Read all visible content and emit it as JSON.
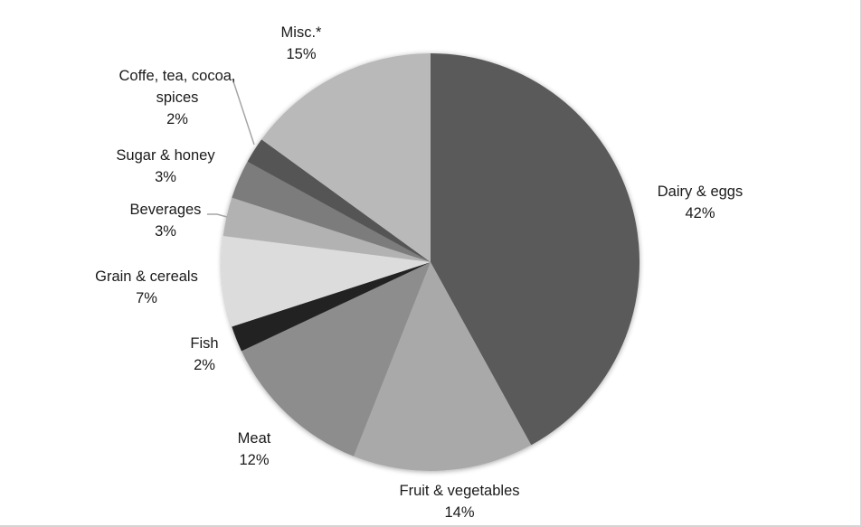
{
  "chart_data": {
    "type": "pie",
    "title": "",
    "start_angle": "12 o'clock",
    "direction": "clockwise",
    "slices": [
      {
        "label": "Dairy & eggs",
        "value": 42,
        "display": "42%",
        "color": "#5a5a5a"
      },
      {
        "label": "Fruit & vegetables",
        "value": 14,
        "display": "14%",
        "color": "#a9a9a9"
      },
      {
        "label": "Meat",
        "value": 12,
        "display": "12%",
        "color": "#8d8d8d"
      },
      {
        "label": "Fish",
        "value": 2,
        "display": "2%",
        "color": "#232323"
      },
      {
        "label": "Grain & cereals",
        "value": 7,
        "display": "7%",
        "color": "#dcdcdc"
      },
      {
        "label": "Beverages",
        "value": 3,
        "display": "3%",
        "color": "#b2b2b2"
      },
      {
        "label": "Sugar & honey",
        "value": 3,
        "display": "3%",
        "color": "#7b7b7b"
      },
      {
        "label": "Coffe, tea, cocoa, spices",
        "value": 2,
        "display": "2%",
        "color": "#555555"
      },
      {
        "label": "Misc.*",
        "value": 15,
        "display": "15%",
        "color": "#b9b9b9"
      }
    ],
    "legend": "none (data labels outside)",
    "units": "%"
  },
  "labels": {
    "dairy": {
      "name": "Dairy & eggs",
      "pct": "42%"
    },
    "fruit": {
      "name": "Fruit & vegetables",
      "pct": "14%"
    },
    "meat": {
      "name": "Meat",
      "pct": "12%"
    },
    "fish": {
      "name": "Fish",
      "pct": "2%"
    },
    "grain": {
      "name": "Grain & cereals",
      "pct": "7%"
    },
    "beverages": {
      "name": "Beverages",
      "pct": "3%"
    },
    "sugar": {
      "name": "Sugar & honey",
      "pct": "3%"
    },
    "coffee": {
      "line1": "Coffe, tea, cocoa,",
      "line2": "spices",
      "pct": "2%"
    },
    "misc": {
      "name": "Misc.*",
      "pct": "15%"
    }
  }
}
